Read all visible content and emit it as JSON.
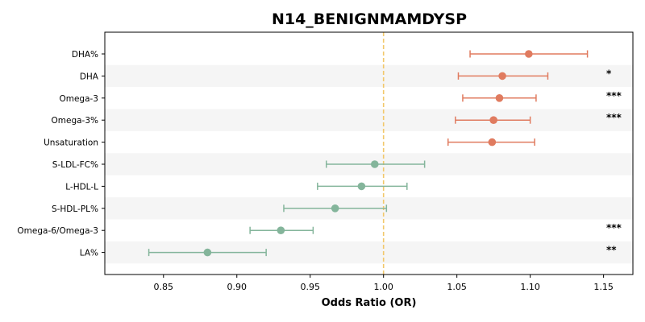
{
  "chart_data": {
    "type": "forest",
    "title": "N14_BENIGNMAMDYSP",
    "xlabel": "Odds Ratio (OR)",
    "xlim": [
      0.81,
      1.17
    ],
    "xticks": [
      0.85,
      0.9,
      0.95,
      1.0,
      1.05,
      1.1,
      1.15
    ],
    "xtick_labels": [
      "0.85",
      "0.90",
      "0.95",
      "1.00",
      "1.05",
      "1.10",
      "1.15"
    ],
    "reference_line": 1.0,
    "reference_color": "#f2c86b",
    "colors": {
      "positive": "#e07b5f",
      "negative": "#84b59b",
      "band": "#f5f5f5"
    },
    "rows": [
      {
        "label": "DHA%",
        "or": 1.099,
        "lo": 1.059,
        "hi": 1.139,
        "sig": ""
      },
      {
        "label": "DHA",
        "or": 1.081,
        "lo": 1.051,
        "hi": 1.112,
        "sig": "*"
      },
      {
        "label": "Omega-3",
        "or": 1.079,
        "lo": 1.054,
        "hi": 1.104,
        "sig": "***"
      },
      {
        "label": "Omega-3%",
        "or": 1.075,
        "lo": 1.049,
        "hi": 1.1,
        "sig": "***"
      },
      {
        "label": "Unsaturation",
        "or": 1.074,
        "lo": 1.044,
        "hi": 1.103,
        "sig": ""
      },
      {
        "label": "S-LDL-FC%",
        "or": 0.994,
        "lo": 0.961,
        "hi": 1.028,
        "sig": ""
      },
      {
        "label": "L-HDL-L",
        "or": 0.985,
        "lo": 0.955,
        "hi": 1.016,
        "sig": ""
      },
      {
        "label": "S-HDL-PL%",
        "or": 0.967,
        "lo": 0.932,
        "hi": 1.002,
        "sig": ""
      },
      {
        "label": "Omega-6/Omega-3",
        "or": 0.93,
        "lo": 0.909,
        "hi": 0.952,
        "sig": "***"
      },
      {
        "label": "LA%",
        "or": 0.88,
        "lo": 0.84,
        "hi": 0.92,
        "sig": "**"
      }
    ]
  }
}
